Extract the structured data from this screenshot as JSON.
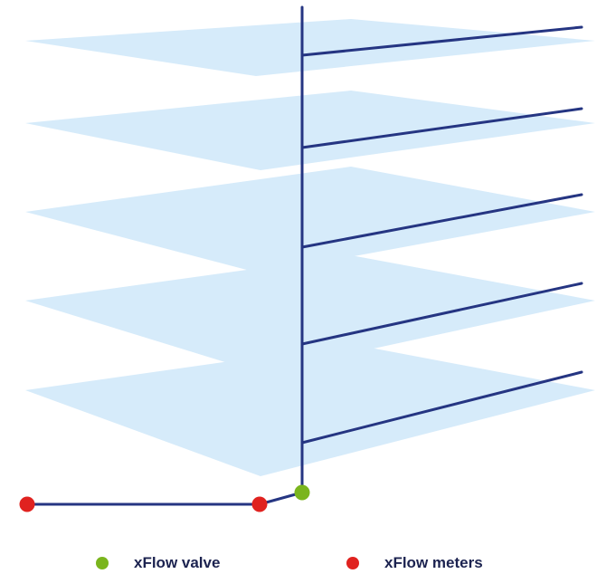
{
  "legend": {
    "valve_label": "xFlow valve",
    "meters_label": "xFlow meters"
  },
  "colors": {
    "floor": "#d6ebfa",
    "pipe": "#253582",
    "valve": "#7ab51d",
    "meter": "#e0221f",
    "text": "#1c2350"
  },
  "floors": 5,
  "icons": {
    "valve": "green-dot",
    "meter": "red-dot"
  }
}
